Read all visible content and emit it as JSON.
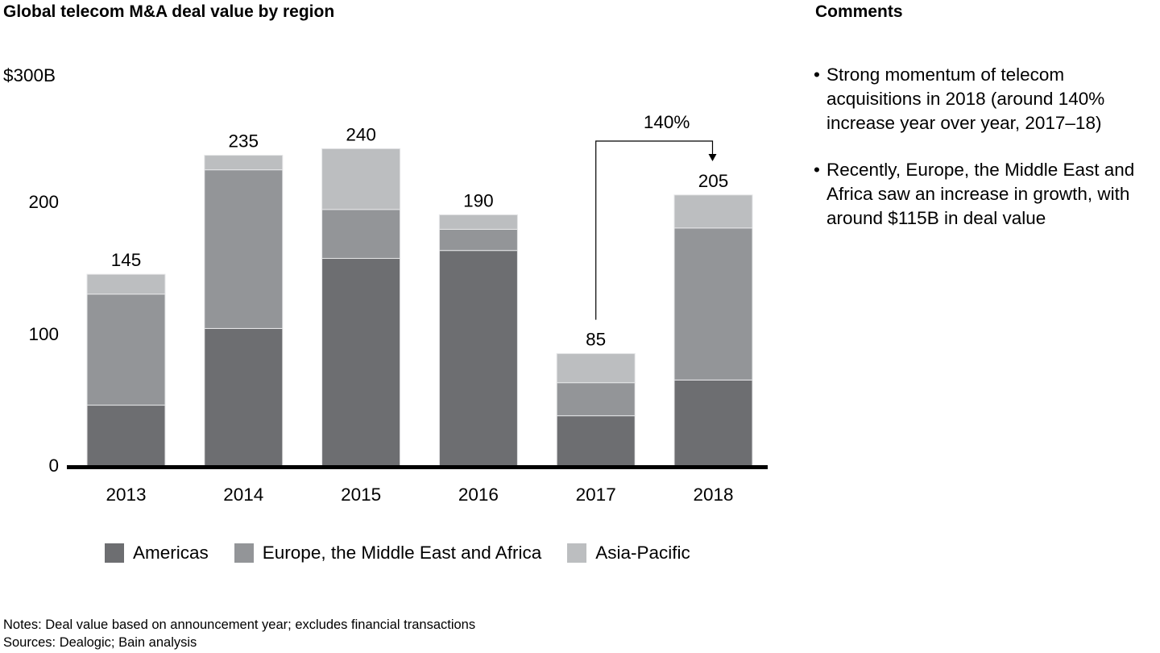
{
  "title": "Global telecom M&A deal value by region",
  "comments": {
    "title": "Comments",
    "items": [
      "Strong momentum of telecom acquisitions in 2018 (around 140% increase year over year, 2017–18)",
      "Recently, Europe, the Middle East and Africa saw an increase in growth, with around $115B in deal value"
    ],
    "bullet": "•"
  },
  "notes": "Notes: Deal value based on announcement year; excludes financial transactions",
  "sources": "Sources: Dealogic; Bain analysis",
  "chart_data": {
    "type": "bar",
    "stacked": true,
    "title": "Global telecom M&A deal value by region",
    "xlabel": "",
    "ylabel": "$B",
    "ylim": [
      0,
      300
    ],
    "yticks": [
      0,
      100,
      200,
      300
    ],
    "ytick_labels": [
      "0",
      "100",
      "200",
      "$300B"
    ],
    "grid": false,
    "categories": [
      "2013",
      "2014",
      "2015",
      "2016",
      "2017",
      "2018"
    ],
    "series": [
      {
        "name": "Americas",
        "color": "#6d6e71",
        "values": [
          46,
          104,
          157,
          163,
          38,
          65
        ]
      },
      {
        "name": "Europe, the Middle East and Africa",
        "color": "#939598",
        "values": [
          84,
          120,
          37,
          16,
          25,
          115
        ]
      },
      {
        "name": "Asia-Pacific",
        "color": "#bcbec0",
        "values": [
          15,
          11,
          46,
          11,
          22,
          25
        ]
      }
    ],
    "totals": [
      145,
      235,
      240,
      190,
      85,
      205
    ],
    "total_labels": [
      "145",
      "235",
      "240",
      "190",
      "85",
      "205"
    ],
    "annotation": {
      "text": "140%",
      "from": "2017",
      "to": "2018"
    },
    "legend_position": "bottom"
  }
}
